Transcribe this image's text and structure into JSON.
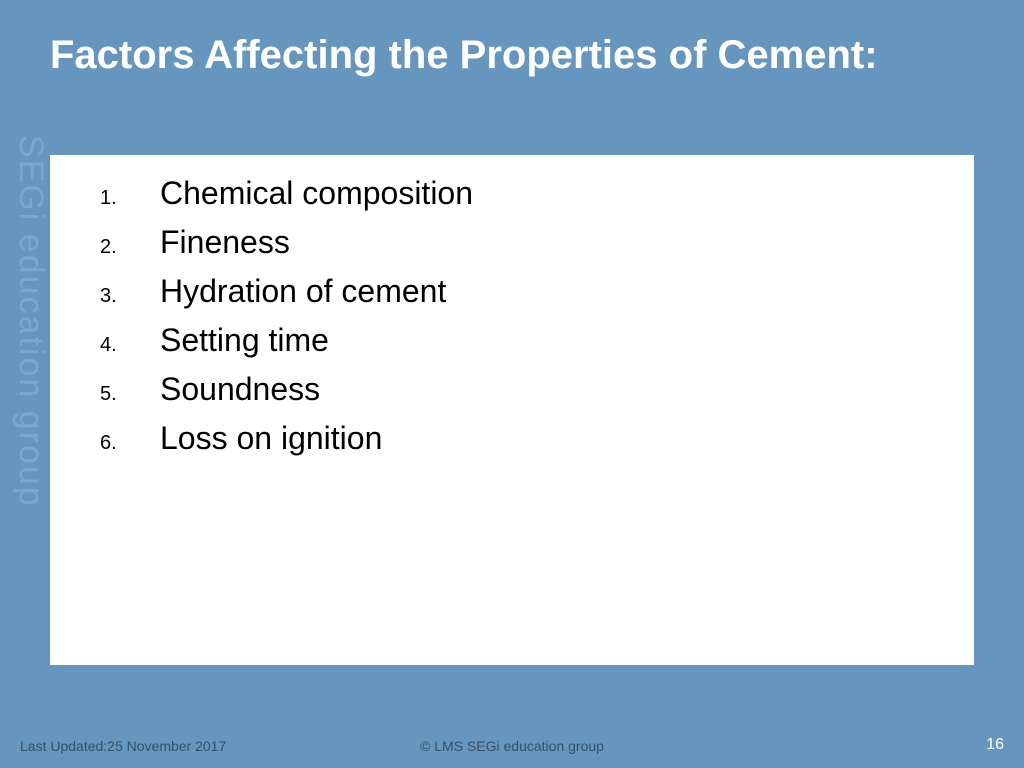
{
  "slide": {
    "background_color": "#6695bd",
    "title": "Factors Affecting the Properties of Cement:",
    "title_color": "#ffffff",
    "title_fontsize": 40,
    "title_weight": "bold",
    "content_background": "#ffffff",
    "list_items": [
      "Chemical composition",
      "Fineness",
      "Hydration of cement",
      "Setting time",
      "Soundness",
      "Loss on ignition"
    ],
    "list_number_fontsize": 20,
    "list_text_fontsize": 32,
    "list_text_color": "#000000",
    "vertical_brand": "SEGi education group",
    "vertical_brand_color": "#7ba7cc",
    "vertical_brand_fontsize": 34
  },
  "footer": {
    "left": "Last Updated:25 November 2017",
    "center": "© LMS SEGi education group",
    "page_number": "16",
    "text_color": "#34516a",
    "page_number_color": "#ffffff",
    "fontsize": 14
  }
}
